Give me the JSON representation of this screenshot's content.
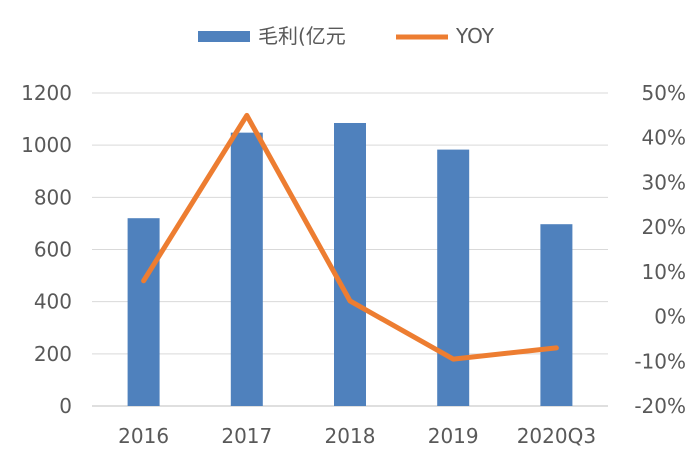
{
  "chart_data": {
    "type": "bar+line",
    "categories": [
      "2016",
      "2017",
      "2018",
      "2019",
      "2020Q3"
    ],
    "series": [
      {
        "name": "毛利(亿元",
        "type": "bar",
        "axis": "left",
        "color": "#4f81bd",
        "values": [
          720,
          1048,
          1085,
          983,
          697
        ]
      },
      {
        "name": "YOY",
        "type": "line",
        "axis": "right",
        "color": "#ed7d31",
        "values": [
          0.08,
          0.45,
          0.035,
          -0.095,
          -0.07
        ]
      }
    ],
    "y_left": {
      "range": [
        0,
        1200
      ],
      "ticks": [
        0,
        200,
        400,
        600,
        800,
        1000,
        1200
      ],
      "tick_labels": [
        "0",
        "200",
        "400",
        "600",
        "800",
        "1000",
        "1200"
      ]
    },
    "y_right": {
      "range": [
        -0.2,
        0.5
      ],
      "ticks": [
        -0.2,
        -0.1,
        0,
        0.1,
        0.2,
        0.3,
        0.4,
        0.5
      ],
      "tick_labels": [
        "-20%",
        "-10%",
        "0%",
        "10%",
        "20%",
        "30%",
        "40%",
        "50%"
      ]
    },
    "grid": true,
    "legend_position": "top-center"
  }
}
